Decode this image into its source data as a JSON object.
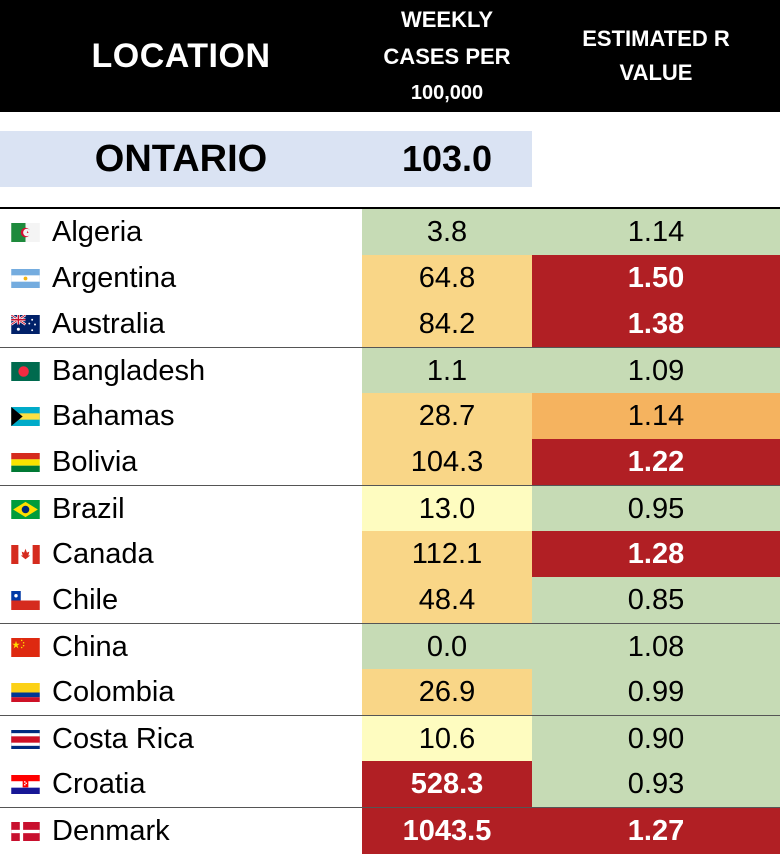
{
  "header": {
    "location": "LOCATION",
    "weekly_line1": "WEEKLY",
    "weekly_line2": "CASES PER",
    "weekly_line3": "100,000",
    "r_line1": "ESTIMATED R",
    "r_line2": "VALUE"
  },
  "ontario": {
    "name": "ONTARIO",
    "cases": "103.0"
  },
  "colors": {
    "green": "#c6dbb5",
    "light_orange": "#f9d687",
    "yellow": "#fefcc0",
    "orange": "#f5b35f",
    "red": "#b11f24"
  },
  "rows": [
    {
      "country": "Algeria",
      "flag": "algeria-flag-icon",
      "cases": "3.8",
      "r": "1.14"
    },
    {
      "country": "Argentina",
      "flag": "argentina-flag-icon",
      "cases": "64.8",
      "r": "1.50"
    },
    {
      "country": "Australia",
      "flag": "australia-flag-icon",
      "cases": "84.2",
      "r": "1.38"
    },
    {
      "country": "Bangladesh",
      "flag": "bangladesh-flag-icon",
      "cases": "1.1",
      "r": "1.09"
    },
    {
      "country": "Bahamas",
      "flag": "bahamas-flag-icon",
      "cases": "28.7",
      "r": "1.14"
    },
    {
      "country": "Bolivia",
      "flag": "bolivia-flag-icon",
      "cases": "104.3",
      "r": "1.22"
    },
    {
      "country": "Brazil",
      "flag": "brazil-flag-icon",
      "cases": "13.0",
      "r": "0.95"
    },
    {
      "country": "Canada",
      "flag": "canada-flag-icon",
      "cases": "112.1",
      "r": "1.28"
    },
    {
      "country": "Chile",
      "flag": "chile-flag-icon",
      "cases": "48.4",
      "r": "0.85"
    },
    {
      "country": "China",
      "flag": "china-flag-icon",
      "cases": "0.0",
      "r": "1.08"
    },
    {
      "country": "Colombia",
      "flag": "colombia-flag-icon",
      "cases": "26.9",
      "r": "0.99"
    },
    {
      "country": "Costa Rica",
      "flag": "costa-rica-flag-icon",
      "cases": "10.6",
      "r": "0.90"
    },
    {
      "country": "Croatia",
      "flag": "croatia-flag-icon",
      "cases": "528.3",
      "r": "0.93"
    },
    {
      "country": "Denmark",
      "flag": "denmark-flag-icon",
      "cases": "1043.5",
      "r": "1.27"
    }
  ]
}
